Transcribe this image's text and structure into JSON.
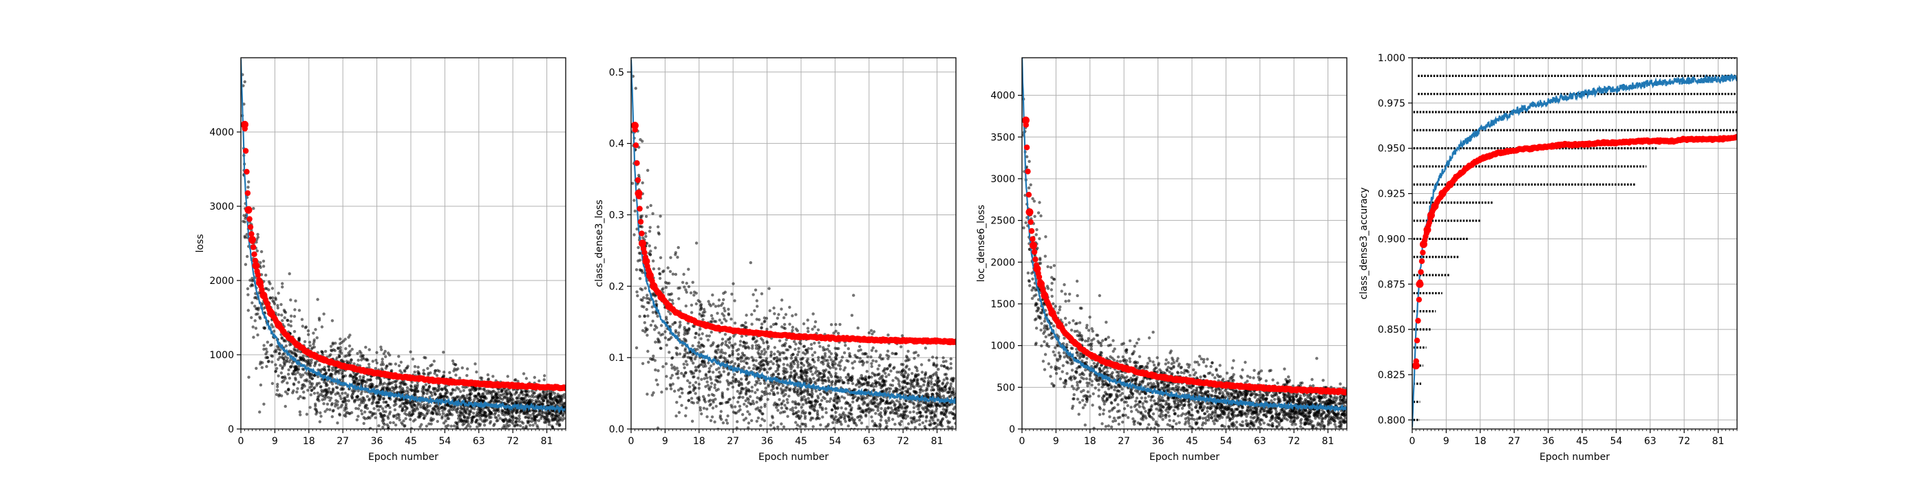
{
  "figure": {
    "colors": {
      "scatter": "#000000",
      "train": "#1f77b4",
      "validation": "#ff0000",
      "grid": "#b0b0b0",
      "axis": "#000000"
    }
  },
  "chart_data": [
    {
      "type": "line",
      "xlabel": "Epoch number",
      "ylabel": "loss",
      "xlim": [
        0,
        86
      ],
      "ylim": [
        0,
        5000
      ],
      "xticks": [
        "0",
        "9",
        "18",
        "27",
        "36",
        "45",
        "54",
        "63",
        "72",
        "81"
      ],
      "yticks": [
        "0",
        "1000",
        "2000",
        "3000",
        "4000"
      ],
      "grid": true,
      "scatter_cloud": {
        "color": "#000000",
        "center": "train",
        "spread_high": 520,
        "spread_low": 200
      },
      "series": [
        {
          "color": "#1f77b4",
          "style": "line",
          "x": [
            0,
            1,
            2,
            3,
            4,
            5,
            6,
            8,
            10,
            12,
            15,
            18,
            22,
            27,
            32,
            36,
            40,
            45,
            50,
            54,
            60,
            63,
            70,
            72,
            78,
            81,
            86
          ],
          "y": [
            5000,
            3400,
            2600,
            2200,
            1900,
            1700,
            1550,
            1320,
            1160,
            1030,
            900,
            800,
            700,
            610,
            540,
            500,
            460,
            420,
            390,
            365,
            340,
            330,
            310,
            300,
            290,
            285,
            270
          ]
        },
        {
          "color": "#ff0000",
          "style": "dots",
          "x": [
            1,
            2,
            3,
            4,
            5,
            6,
            8,
            10,
            12,
            15,
            18,
            22,
            27,
            32,
            36,
            40,
            45,
            50,
            54,
            60,
            63,
            70,
            72,
            78,
            81,
            86
          ],
          "y": [
            4100,
            2950,
            2550,
            2200,
            1970,
            1800,
            1560,
            1400,
            1270,
            1130,
            1020,
            930,
            850,
            790,
            750,
            720,
            690,
            660,
            640,
            620,
            610,
            590,
            585,
            570,
            565,
            550
          ]
        }
      ]
    },
    {
      "type": "line",
      "xlabel": "Epoch number",
      "ylabel": "class_dense3_loss",
      "xlim": [
        0,
        86
      ],
      "ylim": [
        0,
        0.52
      ],
      "xticks": [
        "0",
        "9",
        "18",
        "27",
        "36",
        "45",
        "54",
        "63",
        "72",
        "81"
      ],
      "yticks": [
        "0.0",
        "0.1",
        "0.2",
        "0.3",
        "0.4",
        "0.5"
      ],
      "grid": true,
      "scatter_cloud": {
        "color": "#000000",
        "center": "train",
        "spread_high": 0.09,
        "spread_low": 0.04
      },
      "series": [
        {
          "color": "#1f77b4",
          "style": "line",
          "x": [
            0,
            1,
            2,
            3,
            4,
            5,
            6,
            8,
            10,
            12,
            15,
            18,
            22,
            27,
            32,
            36,
            40,
            45,
            50,
            54,
            60,
            63,
            70,
            72,
            78,
            81,
            86
          ],
          "y": [
            0.52,
            0.36,
            0.28,
            0.24,
            0.21,
            0.19,
            0.175,
            0.155,
            0.14,
            0.128,
            0.115,
            0.105,
            0.095,
            0.085,
            0.077,
            0.072,
            0.067,
            0.062,
            0.058,
            0.055,
            0.051,
            0.05,
            0.046,
            0.045,
            0.042,
            0.041,
            0.038
          ]
        },
        {
          "color": "#ff0000",
          "style": "dots",
          "x": [
            1,
            2,
            3,
            4,
            5,
            6,
            8,
            10,
            12,
            15,
            18,
            22,
            27,
            32,
            36,
            40,
            45,
            50,
            54,
            60,
            63,
            70,
            72,
            78,
            81,
            86
          ],
          "y": [
            0.425,
            0.33,
            0.26,
            0.235,
            0.215,
            0.2,
            0.185,
            0.172,
            0.163,
            0.155,
            0.148,
            0.142,
            0.138,
            0.135,
            0.133,
            0.131,
            0.129,
            0.128,
            0.127,
            0.126,
            0.125,
            0.124,
            0.124,
            0.123,
            0.123,
            0.122
          ]
        }
      ]
    },
    {
      "type": "line",
      "xlabel": "Epoch number",
      "ylabel": "loc_dense6_loss",
      "xlim": [
        0,
        86
      ],
      "ylim": [
        0,
        4450
      ],
      "xticks": [
        "0",
        "9",
        "18",
        "27",
        "36",
        "45",
        "54",
        "63",
        "72",
        "81"
      ],
      "yticks": [
        "0",
        "500",
        "1000",
        "1500",
        "2000",
        "2500",
        "3000",
        "3500",
        "4000"
      ],
      "grid": true,
      "scatter_cloud": {
        "color": "#000000",
        "center": "train",
        "spread_high": 420,
        "spread_low": 180
      },
      "series": [
        {
          "color": "#1f77b4",
          "style": "line",
          "x": [
            0,
            1,
            2,
            3,
            4,
            5,
            6,
            8,
            10,
            12,
            15,
            18,
            22,
            27,
            32,
            36,
            40,
            45,
            50,
            54,
            60,
            63,
            70,
            72,
            78,
            81,
            86
          ],
          "y": [
            4450,
            3000,
            2300,
            1950,
            1700,
            1520,
            1380,
            1180,
            1030,
            920,
            800,
            710,
            620,
            540,
            480,
            440,
            410,
            375,
            350,
            330,
            305,
            295,
            275,
            270,
            260,
            255,
            245
          ]
        },
        {
          "color": "#ff0000",
          "style": "dots",
          "x": [
            1,
            2,
            3,
            4,
            5,
            6,
            8,
            10,
            12,
            15,
            18,
            22,
            27,
            32,
            36,
            40,
            45,
            50,
            54,
            60,
            63,
            70,
            72,
            78,
            81,
            86
          ],
          "y": [
            3700,
            2600,
            2200,
            1920,
            1740,
            1600,
            1390,
            1240,
            1120,
            990,
            890,
            800,
            730,
            670,
            630,
            600,
            570,
            545,
            525,
            505,
            495,
            475,
            470,
            460,
            455,
            445
          ]
        }
      ]
    },
    {
      "type": "line",
      "xlabel": "Epoch number",
      "ylabel": "class_dense3_accuracy",
      "xlim": [
        0,
        86
      ],
      "ylim": [
        0.795,
        1.0
      ],
      "xticks": [
        "0",
        "9",
        "18",
        "27",
        "36",
        "45",
        "54",
        "63",
        "72",
        "81"
      ],
      "yticks": [
        "0.800",
        "0.825",
        "0.850",
        "0.875",
        "0.900",
        "0.925",
        "0.950",
        "0.975",
        "1.000"
      ],
      "grid": true,
      "accuracy_levels": {
        "color": "#000000",
        "step": 0.01,
        "min": 0.8,
        "max": 1.0
      },
      "series": [
        {
          "color": "#1f77b4",
          "style": "line",
          "x": [
            0,
            1,
            2,
            3,
            4,
            5,
            6,
            8,
            10,
            12,
            15,
            18,
            22,
            27,
            32,
            36,
            40,
            45,
            50,
            54,
            60,
            63,
            70,
            72,
            78,
            81,
            86
          ],
          "y": [
            0.795,
            0.85,
            0.88,
            0.9,
            0.91,
            0.92,
            0.928,
            0.937,
            0.944,
            0.95,
            0.955,
            0.96,
            0.965,
            0.97,
            0.974,
            0.976,
            0.978,
            0.98,
            0.982,
            0.983,
            0.985,
            0.986,
            0.987,
            0.987,
            0.988,
            0.988,
            0.989
          ]
        },
        {
          "color": "#ff0000",
          "style": "dots",
          "x": [
            1,
            2,
            3,
            4,
            5,
            6,
            8,
            10,
            12,
            15,
            18,
            22,
            27,
            32,
            36,
            40,
            45,
            50,
            54,
            60,
            63,
            70,
            72,
            78,
            81,
            86
          ],
          "y": [
            0.83,
            0.875,
            0.897,
            0.905,
            0.913,
            0.918,
            0.925,
            0.93,
            0.935,
            0.94,
            0.944,
            0.947,
            0.949,
            0.95,
            0.951,
            0.952,
            0.952,
            0.953,
            0.953,
            0.954,
            0.954,
            0.954,
            0.955,
            0.955,
            0.955,
            0.956
          ]
        }
      ]
    }
  ]
}
